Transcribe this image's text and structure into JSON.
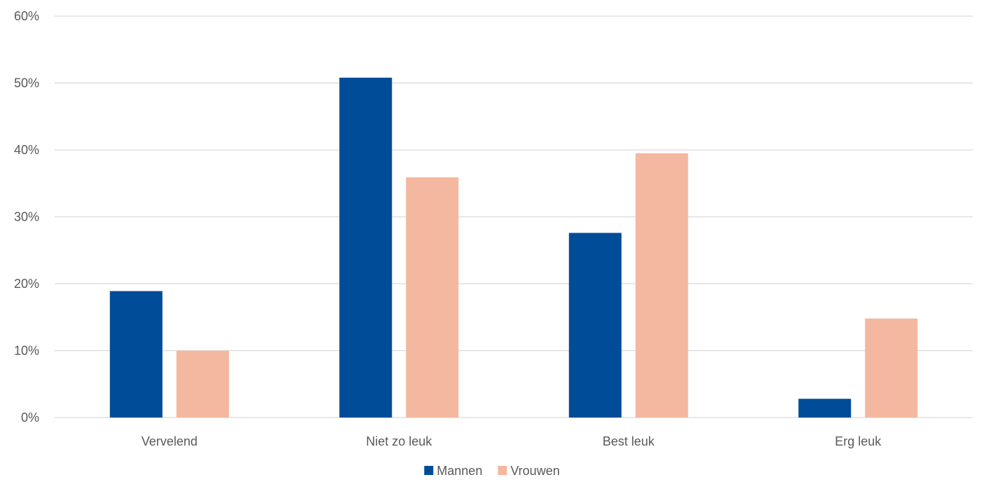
{
  "chart_data": {
    "type": "bar",
    "categories": [
      "Vervelend",
      "Niet zo leuk",
      "Best leuk",
      "Erg leuk"
    ],
    "series": [
      {
        "name": "Mannen",
        "values": [
          18.9,
          50.8,
          27.6,
          2.8
        ],
        "color": "#004C99"
      },
      {
        "name": "Vrouwen",
        "values": [
          10.0,
          35.9,
          39.5,
          14.8
        ],
        "color": "#F4B7A0"
      }
    ],
    "ylim": [
      0,
      60
    ],
    "yticks": [
      "0%",
      "10%",
      "20%",
      "30%",
      "40%",
      "50%",
      "60%"
    ],
    "ytick_values": [
      0,
      10,
      20,
      30,
      40,
      50,
      60
    ],
    "grid": true,
    "legend_position": "bottom-center",
    "title": "",
    "xlabel": "",
    "ylabel": ""
  }
}
